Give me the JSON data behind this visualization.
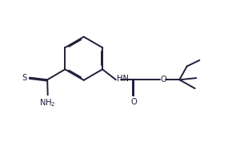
{
  "line_color": "#1f1f3a",
  "bg_color": "#ffffff",
  "lw": 1.4,
  "dbo": 0.048,
  "fs": 7.2,
  "fig_w": 2.85,
  "fig_h": 1.78,
  "dpi": 100,
  "xlim": [
    -0.3,
    10.2
  ],
  "ylim": [
    -0.8,
    5.5
  ]
}
